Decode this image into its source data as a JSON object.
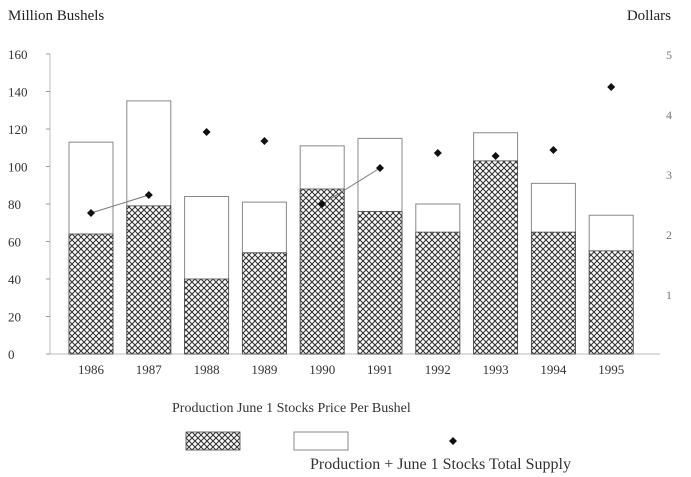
{
  "chart_data": {
    "type": "bar",
    "ylabel": "Million Bushels",
    "y2label": "Dollars",
    "categories": [
      "1986",
      "1987",
      "1988",
      "1989",
      "1990",
      "1991",
      "1992",
      "1993",
      "1994",
      "1995"
    ],
    "category_labels": [
      "1986",
      "1987",
      "1988",
      "1989",
      "1990",
      "1991",
      "1992",
      "1993",
      "1994",
      "1995"
    ],
    "ylim": [
      0,
      160
    ],
    "yticks": [
      0,
      20,
      40,
      60,
      80,
      100,
      120,
      140,
      160
    ],
    "y2lim": [
      0,
      5
    ],
    "y2ticks": [
      1,
      2,
      3,
      4,
      5
    ],
    "series": [
      {
        "name": "Production",
        "kind": "bar",
        "pattern": "crosshatch",
        "values": [
          64,
          79,
          40,
          54,
          88,
          76,
          65,
          103,
          65,
          55
        ]
      },
      {
        "name": "Total Supply",
        "kind": "bar",
        "pattern": "outline",
        "values": [
          113,
          135,
          84,
          81,
          111,
          115,
          80,
          118,
          91,
          74
        ]
      },
      {
        "name": "Price Per Bushel",
        "kind": "scatter",
        "axis": "y2",
        "values": [
          2.35,
          2.65,
          3.7,
          3.55,
          2.5,
          3.1,
          3.35,
          3.3,
          3.4,
          4.45
        ]
      }
    ],
    "legend": {
      "position": "bottom",
      "captions": "Production  June 1 Stocks  Price Per Bushel",
      "captions2": "Production + June 1 Stocks    Total Supply"
    }
  }
}
